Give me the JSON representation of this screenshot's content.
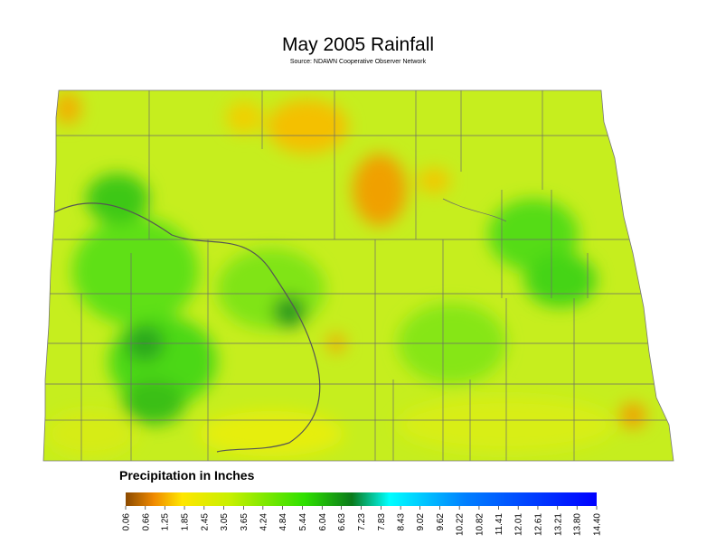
{
  "header": {
    "title": "May 2005 Rainfall",
    "source": "Source: NDAWN Cooperative Observer Network"
  },
  "legend": {
    "title": "Precipitation in Inches",
    "ticks": [
      0.06,
      0.66,
      1.25,
      1.85,
      2.45,
      3.05,
      3.65,
      4.24,
      4.84,
      5.44,
      6.04,
      6.63,
      7.23,
      7.83,
      8.43,
      9.02,
      9.62,
      10.22,
      10.82,
      11.41,
      12.01,
      12.61,
      13.21,
      {
        "value": 13.8,
        "label": "13.80"
      },
      {
        "value": 14.4,
        "label": "14.40"
      }
    ]
  }
}
